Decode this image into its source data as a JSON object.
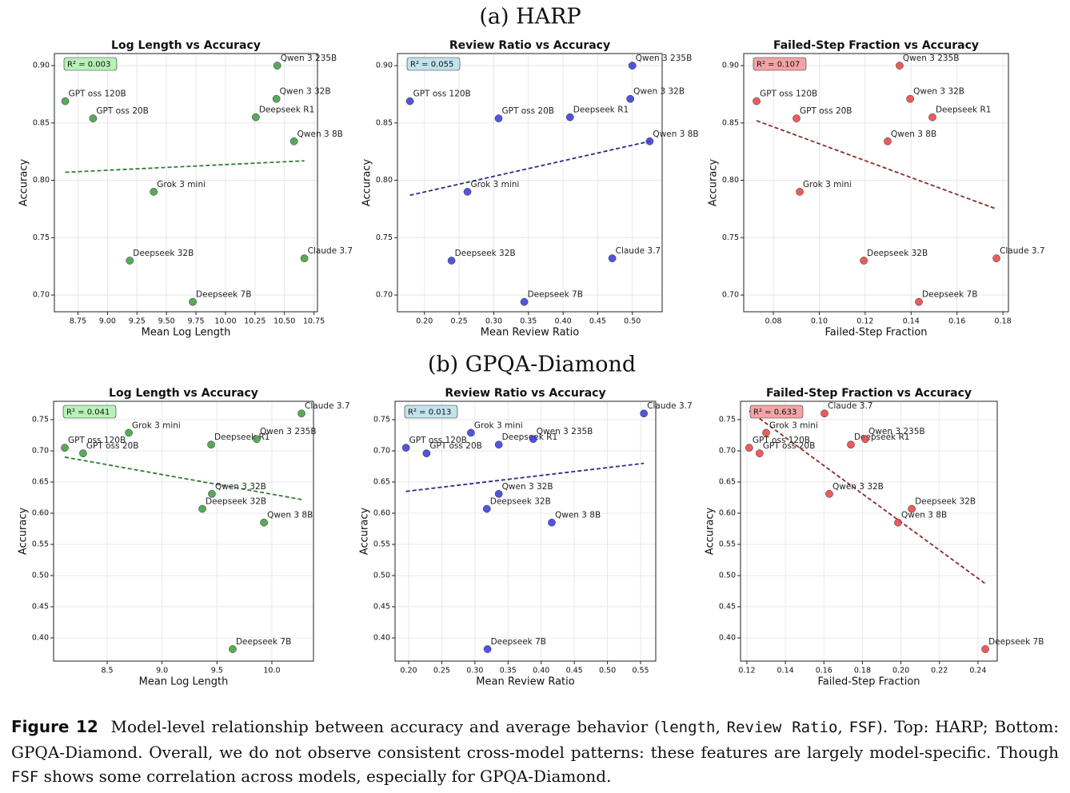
{
  "sections": [
    "(a) HARP",
    "(b) GPQA-Diamond"
  ],
  "caption": {
    "label": "Figure 12",
    "parts": [
      "Model-level relationship between accuracy and average behavior (",
      "length",
      ", ",
      "Review Ratio",
      ", ",
      "FSF",
      "). Top: HARP; Bottom: GPQA-Diamond. Overall, we do not observe consistent cross-model patterns: these features are largely model-specific. Though ",
      "FSF",
      " shows some correlation across models, especially for GPQA-Diamond."
    ]
  },
  "chart_data": [
    {
      "type": "scatter",
      "title": "Log Length vs Accuracy",
      "xlabel": "Mean Log Length",
      "ylabel": "Accuracy",
      "color": "#3d9a3d",
      "trend_color": "#2e7d32",
      "annotation": "R² = 0.003",
      "annotation_color": "#b8f0b8",
      "grid": true,
      "point_labels": [
        "GPT oss 120B",
        "GPT oss 20B",
        "Grok 3 mini",
        "Deepseek 32B",
        "Deepseek 7B",
        "Deepseek R1",
        "Qwen 3 32B",
        "Qwen 3 235B",
        "Qwen 3 8B",
        "Claude 3.7"
      ],
      "x": [
        8.642,
        8.878,
        9.392,
        9.189,
        9.723,
        10.257,
        10.432,
        10.439,
        10.581,
        10.669
      ],
      "values": [
        0.869,
        0.854,
        0.79,
        0.73,
        0.694,
        0.855,
        0.871,
        0.9,
        0.834,
        0.732
      ],
      "trend": {
        "x": [
          8.642,
          10.669
        ],
        "y": [
          0.807,
          0.817
        ]
      },
      "xlim": [
        8.55,
        10.78
      ],
      "ylim": [
        0.6854,
        0.9105
      ],
      "xticks": [
        8.75,
        {
          "value": 9,
          "label": "9.00"
        },
        9.25,
        {
          "value": 9.5,
          "label": "9.50"
        },
        9.75,
        {
          "value": 10,
          "label": "10.00"
        },
        10.25,
        {
          "value": 10.5,
          "label": "10.50"
        },
        10.75
      ],
      "yticks": [
        {
          "value": 0.7,
          "label": "0.70"
        },
        0.75,
        {
          "value": 0.8,
          "label": "0.80"
        },
        0.85,
        {
          "value": 0.9,
          "label": "0.90"
        }
      ]
    },
    {
      "type": "scatter",
      "title": "Review Ratio vs Accuracy",
      "xlabel": "Mean Review Ratio",
      "ylabel": "Accuracy",
      "color": "#3535dd",
      "trend_color": "#2b2b8a",
      "annotation": "R² = 0.055",
      "annotation_color": "#c2e2ec",
      "grid": true,
      "point_labels": [
        "GPT oss 120B",
        "GPT oss 20B",
        "Grok 3 mini",
        "Deepseek 32B",
        "Deepseek 7B",
        "Deepseek R1",
        "Qwen 3 32B",
        "Qwen 3 235B",
        "Qwen 3 8B",
        "Claude 3.7"
      ],
      "x": [
        0.179,
        0.307,
        0.262,
        0.239,
        0.344,
        0.41,
        0.497,
        0.5,
        0.525,
        0.471
      ],
      "values": [
        0.869,
        0.854,
        0.79,
        0.73,
        0.694,
        0.855,
        0.871,
        0.9,
        0.834,
        0.732
      ],
      "trend": {
        "x": [
          0.179,
          0.525
        ],
        "y": [
          0.787,
          0.834
        ]
      },
      "xlim": [
        0.161,
        0.543
      ],
      "ylim": [
        0.6854,
        0.9105
      ],
      "xticks": [
        {
          "value": 0.2,
          "label": "0.20"
        },
        0.25,
        {
          "value": 0.3,
          "label": "0.30"
        },
        0.35,
        {
          "value": 0.4,
          "label": "0.40"
        },
        0.45,
        {
          "value": 0.5,
          "label": "0.50"
        }
      ],
      "yticks": [
        {
          "value": 0.7,
          "label": "0.70"
        },
        0.75,
        {
          "value": 0.8,
          "label": "0.80"
        },
        0.85,
        {
          "value": 0.9,
          "label": "0.90"
        }
      ]
    },
    {
      "type": "scatter",
      "title": "Failed-Step Fraction vs Accuracy",
      "xlabel": "Failed-Step Fraction",
      "ylabel": "Accuracy",
      "color": "#e84040",
      "trend_color": "#8b2b2b",
      "annotation": "R² = 0.107",
      "annotation_color": "#f4a4a4",
      "grid": true,
      "point_labels": [
        "GPT oss 120B",
        "GPT oss 20B",
        "Grok 3 mini",
        "Deepseek 32B",
        "Deepseek 7B",
        "Deepseek R1",
        "Qwen 3 32B",
        "Qwen 3 235B",
        "Qwen 3 8B",
        "Claude 3.7"
      ],
      "x": [
        0.0727,
        0.0901,
        0.0915,
        0.1194,
        0.1434,
        0.1493,
        0.1396,
        0.135,
        0.1298,
        0.1772
      ],
      "values": [
        0.869,
        0.854,
        0.79,
        0.73,
        0.694,
        0.855,
        0.871,
        0.9,
        0.834,
        0.732
      ],
      "trend": {
        "x": [
          0.0727,
          0.1772
        ],
        "y": [
          0.852,
          0.775
        ]
      },
      "xlim": [
        0.0671,
        0.1824
      ],
      "ylim": [
        0.6854,
        0.9105
      ],
      "xticks": [
        0.08,
        {
          "value": 0.1,
          "label": "0.10"
        },
        0.12,
        0.14,
        0.16,
        0.18
      ],
      "yticks": [
        {
          "value": 0.7,
          "label": "0.70"
        },
        0.75,
        {
          "value": 0.8,
          "label": "0.80"
        },
        0.85,
        {
          "value": 0.9,
          "label": "0.90"
        }
      ]
    },
    {
      "type": "scatter",
      "title": "Log Length vs Accuracy",
      "xlabel": "Mean Log Length",
      "ylabel": "Accuracy",
      "color": "#3d9a3d",
      "trend_color": "#2e7d32",
      "annotation": "R² = 0.041",
      "annotation_color": "#b8f0b8",
      "grid": true,
      "point_labels": [
        "GPT oss 120B",
        "GPT oss 20B",
        "Grok 3 mini",
        "Deepseek R1",
        "Qwen 3 235B",
        "Claude 3.7",
        "Qwen 3 32B",
        "Deepseek 32B",
        "Qwen 3 8B",
        "Deepseek 7B"
      ],
      "x": [
        8.114,
        8.281,
        8.697,
        9.447,
        9.862,
        10.27,
        9.454,
        9.367,
        9.928,
        9.643
      ],
      "values": [
        0.705,
        0.696,
        0.729,
        0.71,
        0.719,
        0.76,
        0.631,
        0.607,
        0.585,
        0.382
      ],
      "trend": {
        "x": [
          8.114,
          10.27
        ],
        "y": [
          0.69,
          0.622
        ]
      },
      "xlim": [
        8.012,
        10.379
      ],
      "ylim": [
        0.3628,
        0.7795
      ],
      "xticks": [
        8.5,
        {
          "value": 9,
          "label": "9.0"
        },
        9.5,
        {
          "value": 10,
          "label": "10.0"
        }
      ],
      "yticks": [
        {
          "value": 0.4,
          "label": "0.40"
        },
        0.45,
        {
          "value": 0.5,
          "label": "0.50"
        },
        0.55,
        {
          "value": 0.6,
          "label": "0.60"
        },
        0.65,
        {
          "value": 0.7,
          "label": "0.70"
        },
        0.75
      ]
    },
    {
      "type": "scatter",
      "title": "Review Ratio vs Accuracy",
      "xlabel": "Mean Review Ratio",
      "ylabel": "Accuracy",
      "color": "#3535dd",
      "trend_color": "#2b2b8a",
      "annotation": "R² = 0.013",
      "annotation_color": "#c2e2ec",
      "grid": true,
      "point_labels": [
        "GPT oss 120B",
        "GPT oss 20B",
        "Grok 3 mini",
        "Deepseek R1",
        "Qwen 3 235B",
        "Claude 3.7",
        "Qwen 3 32B",
        "Deepseek 32B",
        "Qwen 3 8B",
        "Deepseek 7B"
      ],
      "x": [
        0.196,
        0.227,
        0.294,
        0.336,
        0.388,
        0.555,
        0.336,
        0.318,
        0.416,
        0.319
      ],
      "values": [
        0.705,
        0.696,
        0.729,
        0.71,
        0.719,
        0.76,
        0.631,
        0.607,
        0.585,
        0.382
      ],
      "trend": {
        "x": [
          0.196,
          0.555
        ],
        "y": [
          0.635,
          0.68
        ]
      },
      "xlim": [
        0.1795,
        0.5729
      ],
      "ylim": [
        0.3628,
        0.7795
      ],
      "xticks": [
        {
          "value": 0.2,
          "label": "0.20"
        },
        0.25,
        {
          "value": 0.3,
          "label": "0.30"
        },
        0.35,
        {
          "value": 0.4,
          "label": "0.40"
        },
        0.45,
        {
          "value": 0.5,
          "label": "0.50"
        },
        0.55
      ],
      "yticks": [
        {
          "value": 0.4,
          "label": "0.40"
        },
        0.45,
        {
          "value": 0.5,
          "label": "0.50"
        },
        0.55,
        {
          "value": 0.6,
          "label": "0.60"
        },
        0.65,
        {
          "value": 0.7,
          "label": "0.70"
        },
        0.75
      ]
    },
    {
      "type": "scatter",
      "title": "Failed-Step Fraction vs Accuracy",
      "xlabel": "Failed-Step Fraction",
      "ylabel": "Accuracy",
      "color": "#e84040",
      "trend_color": "#8b2b2b",
      "annotation": "R² = 0.633",
      "annotation_color": "#f4a4a4",
      "grid": true,
      "point_labels": [
        "GPT oss 120B",
        "GPT oss 20B",
        "Grok 3 mini",
        "Deepseek R1",
        "Qwen 3 235B",
        "Claude 3.7",
        "Qwen 3 32B",
        "Deepseek 32B",
        "Qwen 3 8B",
        "Deepseek 7B"
      ],
      "x": [
        0.1212,
        0.1266,
        0.13,
        0.174,
        0.1815,
        0.1603,
        0.1628,
        0.2056,
        0.1985,
        0.2438
      ],
      "values": [
        0.705,
        0.696,
        0.729,
        0.71,
        0.719,
        0.76,
        0.631,
        0.607,
        0.585,
        0.382
      ],
      "trend": {
        "x": [
          0.1212,
          0.2438
        ],
        "y": [
          0.764,
          0.487
        ]
      },
      "xlim": [
        0.1167,
        0.25
      ],
      "ylim": [
        0.3628,
        0.7795
      ],
      "xticks": [
        0.12,
        0.14,
        0.16,
        0.18,
        {
          "value": 0.2,
          "label": "0.20"
        },
        0.22,
        0.24
      ],
      "yticks": [
        {
          "value": 0.4,
          "label": "0.40"
        },
        0.45,
        {
          "value": 0.5,
          "label": "0.50"
        },
        0.55,
        {
          "value": 0.6,
          "label": "0.60"
        },
        0.65,
        {
          "value": 0.7,
          "label": "0.70"
        },
        0.75
      ]
    }
  ]
}
